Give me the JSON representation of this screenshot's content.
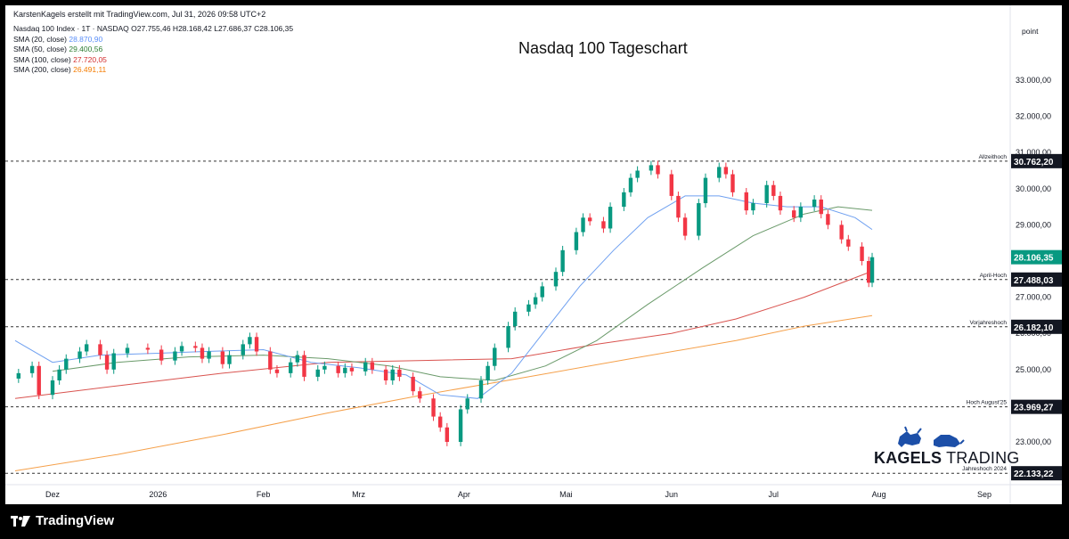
{
  "credit": "KarstenKagels erstellt mit TradingView.com, Jul 31, 2026 09:58 UTC+2",
  "legend": [
    {
      "label": "Nasdaq 100 Index · 1T · NASDAQ",
      "value": "O27.755,46  H28.168,42  L27.686,37  C28.106,35",
      "color": "#131722"
    },
    {
      "label": "SMA (20, close)",
      "value": "28.870,90",
      "color": "#5b8ff9"
    },
    {
      "label": "SMA (50, close)",
      "value": "29.400,56",
      "color": "#2e7d32"
    },
    {
      "label": "SMA (100, close)",
      "value": "27.720,05",
      "color": "#d32f2f"
    },
    {
      "label": "SMA (200, close)",
      "value": "26.491,11",
      "color": "#f57c00"
    }
  ],
  "branding": {
    "kagels_bold": "KAGELS",
    "kagels_light": "TRADING",
    "footer": "TradingView"
  },
  "colors": {
    "up": "#089981",
    "down": "#f23645",
    "sma20": "#6fa0f0",
    "sma50": "#6a9a6a",
    "sma100": "#d9534f",
    "sma200": "#f5a04a",
    "tag": "#131722"
  },
  "chart_data": {
    "type": "candlestick",
    "title": "Nasdaq 100 Tageschart",
    "unit_label": "point",
    "ylim": [
      21900,
      33500
    ],
    "y_ticks": [
      {
        "value": 23000,
        "label": "23.000,00"
      },
      {
        "value": 25000,
        "label": "25.000,00"
      },
      {
        "value": 26000,
        "label": "26.000,00"
      },
      {
        "value": 27000,
        "label": "27.000,00"
      },
      {
        "value": 29000,
        "label": "29.000,00"
      },
      {
        "value": 30000,
        "label": "30.000,00"
      },
      {
        "value": 31000,
        "label": "31.000,00"
      },
      {
        "value": 32000,
        "label": "32.000,00"
      },
      {
        "value": 33000,
        "label": "33.000,00"
      }
    ],
    "x_ticks": [
      {
        "date": "2025-12-01",
        "label": "Dez"
      },
      {
        "date": "2026-01-01",
        "label": "2026"
      },
      {
        "date": "2026-02-01",
        "label": "Feb"
      },
      {
        "date": "2026-03-01",
        "label": "Mrz"
      },
      {
        "date": "2026-04-01",
        "label": "Apr"
      },
      {
        "date": "2026-05-01",
        "label": "Mai"
      },
      {
        "date": "2026-06-01",
        "label": "Jun"
      },
      {
        "date": "2026-07-01",
        "label": "Jul"
      },
      {
        "date": "2026-08-01",
        "label": "Aug"
      },
      {
        "date": "2026-09-01",
        "label": "Sep"
      }
    ],
    "x_range": [
      "2025-11-20",
      "2026-09-15"
    ],
    "levels": [
      {
        "name": "Allzeithoch",
        "value": 30762.2,
        "label": "30.762,20"
      },
      {
        "name": "April-Hoch",
        "value": 27488.03,
        "label": "27.488,03"
      },
      {
        "name": "Vorjahreshoch",
        "value": 26182.1,
        "label": "26.182,10"
      },
      {
        "name": "Hoch August'25",
        "value": 23969.27,
        "label": "23.969,27"
      },
      {
        "name": "Jahreshoch 2024",
        "value": 22133.22,
        "label": "22.133,22"
      }
    ],
    "last_price": {
      "value": 28106.35,
      "label": "28.106,35"
    },
    "closes": [
      {
        "date": "2025-11-21",
        "close": 24900
      },
      {
        "date": "2025-11-25",
        "close": 25100
      },
      {
        "date": "2025-11-27",
        "close": 24300
      },
      {
        "date": "2025-12-01",
        "close": 24700
      },
      {
        "date": "2025-12-03",
        "close": 25000
      },
      {
        "date": "2025-12-05",
        "close": 25300
      },
      {
        "date": "2025-12-09",
        "close": 25500
      },
      {
        "date": "2025-12-11",
        "close": 25700
      },
      {
        "date": "2025-12-15",
        "close": 25400
      },
      {
        "date": "2025-12-17",
        "close": 25000
      },
      {
        "date": "2025-12-19",
        "close": 25450
      },
      {
        "date": "2025-12-23",
        "close": 25600
      },
      {
        "date": "2025-12-29",
        "close": 25550
      },
      {
        "date": "2026-01-02",
        "close": 25250
      },
      {
        "date": "2026-01-06",
        "close": 25500
      },
      {
        "date": "2026-01-08",
        "close": 25650
      },
      {
        "date": "2026-01-12",
        "close": 25600
      },
      {
        "date": "2026-01-14",
        "close": 25300
      },
      {
        "date": "2026-01-16",
        "close": 25500
      },
      {
        "date": "2026-01-20",
        "close": 25150
      },
      {
        "date": "2026-01-22",
        "close": 25400
      },
      {
        "date": "2026-01-26",
        "close": 25700
      },
      {
        "date": "2026-01-28",
        "close": 25900
      },
      {
        "date": "2026-01-30",
        "close": 25500
      },
      {
        "date": "2026-02-03",
        "close": 25000
      },
      {
        "date": "2026-02-05",
        "close": 24900
      },
      {
        "date": "2026-02-09",
        "close": 25200
      },
      {
        "date": "2026-02-11",
        "close": 25400
      },
      {
        "date": "2026-02-13",
        "close": 24800
      },
      {
        "date": "2026-02-17",
        "close": 25000
      },
      {
        "date": "2026-02-19",
        "close": 25100
      },
      {
        "date": "2026-02-23",
        "close": 24900
      },
      {
        "date": "2026-02-25",
        "close": 25050
      },
      {
        "date": "2026-02-27",
        "close": 24950
      },
      {
        "date": "2026-03-03",
        "close": 25200
      },
      {
        "date": "2026-03-05",
        "close": 25000
      },
      {
        "date": "2026-03-09",
        "close": 24700
      },
      {
        "date": "2026-03-11",
        "close": 25000
      },
      {
        "date": "2026-03-13",
        "close": 24800
      },
      {
        "date": "2026-03-17",
        "close": 24400
      },
      {
        "date": "2026-03-19",
        "close": 24200
      },
      {
        "date": "2026-03-23",
        "close": 23700
      },
      {
        "date": "2026-03-25",
        "close": 23400
      },
      {
        "date": "2026-03-27",
        "close": 23000
      },
      {
        "date": "2026-03-31",
        "close": 23900
      },
      {
        "date": "2026-04-02",
        "close": 24200
      },
      {
        "date": "2026-04-06",
        "close": 24700
      },
      {
        "date": "2026-04-08",
        "close": 25100
      },
      {
        "date": "2026-04-10",
        "close": 25600
      },
      {
        "date": "2026-04-14",
        "close": 26200
      },
      {
        "date": "2026-04-16",
        "close": 26600
      },
      {
        "date": "2026-04-20",
        "close": 26800
      },
      {
        "date": "2026-04-22",
        "close": 27000
      },
      {
        "date": "2026-04-24",
        "close": 27300
      },
      {
        "date": "2026-04-28",
        "close": 27700
      },
      {
        "date": "2026-04-30",
        "close": 28300
      },
      {
        "date": "2026-05-04",
        "close": 28800
      },
      {
        "date": "2026-05-06",
        "close": 29200
      },
      {
        "date": "2026-05-08",
        "close": 29100
      },
      {
        "date": "2026-05-12",
        "close": 28900
      },
      {
        "date": "2026-05-14",
        "close": 29500
      },
      {
        "date": "2026-05-18",
        "close": 29900
      },
      {
        "date": "2026-05-20",
        "close": 30300
      },
      {
        "date": "2026-05-22",
        "close": 30500
      },
      {
        "date": "2026-05-26",
        "close": 30650
      },
      {
        "date": "2026-05-28",
        "close": 30400
      },
      {
        "date": "2026-06-01",
        "close": 29800
      },
      {
        "date": "2026-06-03",
        "close": 29200
      },
      {
        "date": "2026-06-05",
        "close": 28700
      },
      {
        "date": "2026-06-09",
        "close": 29600
      },
      {
        "date": "2026-06-11",
        "close": 30300
      },
      {
        "date": "2026-06-15",
        "close": 30600
      },
      {
        "date": "2026-06-17",
        "close": 30400
      },
      {
        "date": "2026-06-19",
        "close": 29900
      },
      {
        "date": "2026-06-23",
        "close": 29400
      },
      {
        "date": "2026-06-25",
        "close": 29600
      },
      {
        "date": "2026-06-29",
        "close": 30100
      },
      {
        "date": "2026-07-01",
        "close": 29800
      },
      {
        "date": "2026-07-03",
        "close": 29400
      },
      {
        "date": "2026-07-07",
        "close": 29200
      },
      {
        "date": "2026-07-09",
        "close": 29500
      },
      {
        "date": "2026-07-13",
        "close": 29700
      },
      {
        "date": "2026-07-15",
        "close": 29300
      },
      {
        "date": "2026-07-17",
        "close": 29000
      },
      {
        "date": "2026-07-21",
        "close": 28600
      },
      {
        "date": "2026-07-23",
        "close": 28400
      },
      {
        "date": "2026-07-27",
        "close": 28000
      },
      {
        "date": "2026-07-29",
        "close": 27400
      },
      {
        "date": "2026-07-30",
        "close": 28106
      }
    ],
    "sma": {
      "sma20": [
        [
          "2025-11-20",
          25800
        ],
        [
          "2025-12-01",
          25200
        ],
        [
          "2025-12-15",
          25400
        ],
        [
          "2026-01-01",
          25450
        ],
        [
          "2026-01-15",
          25500
        ],
        [
          "2026-02-01",
          25550
        ],
        [
          "2026-02-15",
          25200
        ],
        [
          "2026-03-01",
          25050
        ],
        [
          "2026-03-15",
          24850
        ],
        [
          "2026-03-25",
          24300
        ],
        [
          "2026-04-05",
          24200
        ],
        [
          "2026-04-15",
          24900
        ],
        [
          "2026-04-25",
          26100
        ],
        [
          "2026-05-05",
          27300
        ],
        [
          "2026-05-15",
          28300
        ],
        [
          "2026-05-25",
          29200
        ],
        [
          "2026-06-05",
          29800
        ],
        [
          "2026-06-15",
          29800
        ],
        [
          "2026-06-25",
          29600
        ],
        [
          "2026-07-05",
          29500
        ],
        [
          "2026-07-15",
          29500
        ],
        [
          "2026-07-25",
          29200
        ],
        [
          "2026-07-30",
          28870.9
        ]
      ],
      "sma50": [
        [
          "2025-12-01",
          24950
        ],
        [
          "2025-12-20",
          25200
        ],
        [
          "2026-01-10",
          25350
        ],
        [
          "2026-02-01",
          25400
        ],
        [
          "2026-02-20",
          25300
        ],
        [
          "2026-03-10",
          25100
        ],
        [
          "2026-03-25",
          24800
        ],
        [
          "2026-04-10",
          24700
        ],
        [
          "2026-04-25",
          25100
        ],
        [
          "2026-05-10",
          25800
        ],
        [
          "2026-05-25",
          26800
        ],
        [
          "2026-06-10",
          27800
        ],
        [
          "2026-06-25",
          28700
        ],
        [
          "2026-07-10",
          29300
        ],
        [
          "2026-07-20",
          29500
        ],
        [
          "2026-07-30",
          29400.56
        ]
      ],
      "sma100": [
        [
          "2025-11-20",
          24200
        ],
        [
          "2025-12-20",
          24550
        ],
        [
          "2026-01-20",
          24900
        ],
        [
          "2026-02-20",
          25200
        ],
        [
          "2026-03-20",
          25250
        ],
        [
          "2026-04-15",
          25300
        ],
        [
          "2026-05-10",
          25700
        ],
        [
          "2026-06-01",
          26000
        ],
        [
          "2026-06-20",
          26400
        ],
        [
          "2026-07-10",
          27000
        ],
        [
          "2026-07-30",
          27720.05
        ]
      ],
      "sma200": [
        [
          "2025-11-20",
          22200
        ],
        [
          "2025-12-20",
          22650
        ],
        [
          "2026-01-20",
          23200
        ],
        [
          "2026-02-20",
          23800
        ],
        [
          "2026-03-20",
          24300
        ],
        [
          "2026-04-20",
          24800
        ],
        [
          "2026-05-20",
          25300
        ],
        [
          "2026-06-20",
          25800
        ],
        [
          "2026-07-10",
          26200
        ],
        [
          "2026-07-30",
          26491.11
        ]
      ]
    }
  }
}
